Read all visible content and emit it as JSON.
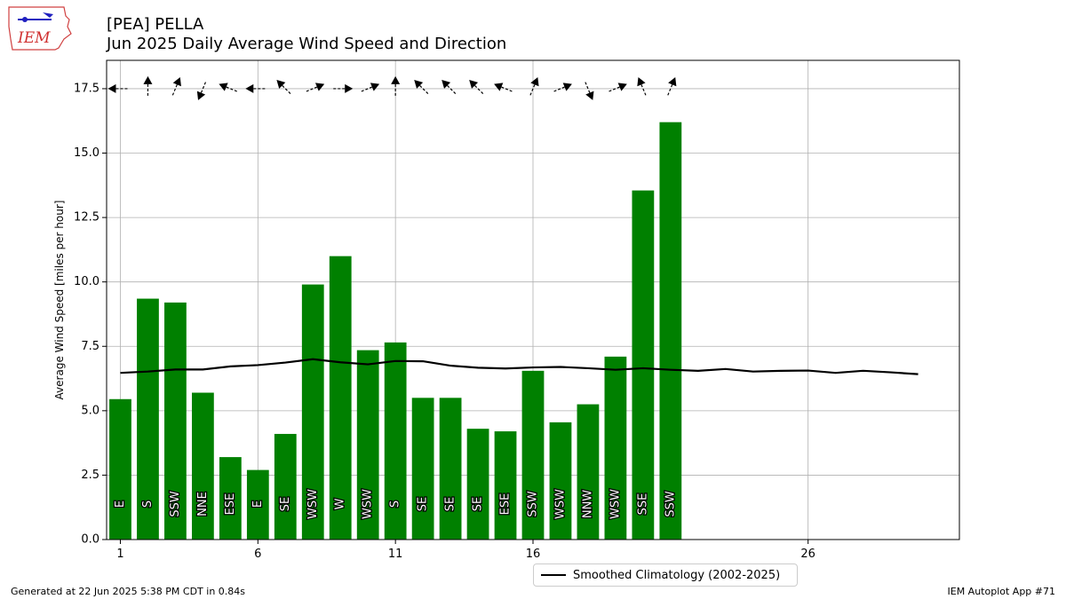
{
  "header": {
    "title_line1": "[PEA] PELLA",
    "title_line2": "Jun 2025 Daily Average Wind Speed and Direction",
    "logo_text": "IEM"
  },
  "footer": {
    "generated": "Generated at 22 Jun 2025 5:38 PM CDT in 0.84s",
    "app": "IEM Autoplot App #71"
  },
  "legend": {
    "label": "Smoothed Climatology (2002-2025)"
  },
  "colors": {
    "bar": "#008000",
    "climo": "#000000",
    "grid": "#b0b0b0"
  },
  "chart_data": {
    "type": "bar",
    "title": "[PEA] PELLA",
    "subtitle": "Jun 2025 Daily Average Wind Speed and Direction",
    "ylabel": "Average Wind Speed [miles per hour]",
    "xlabel": "",
    "ylim": [
      0,
      18.6
    ],
    "xlim": [
      0.5,
      31.5
    ],
    "grid": true,
    "legend_placement": "bottom-center",
    "xticks": [
      1,
      6,
      11,
      16,
      26
    ],
    "yticks": [
      0.0,
      2.5,
      5.0,
      7.5,
      10.0,
      12.5,
      15.0,
      17.5
    ],
    "days": [
      1,
      2,
      3,
      4,
      5,
      6,
      7,
      8,
      9,
      10,
      11,
      12,
      13,
      14,
      15,
      16,
      17,
      18,
      19,
      20,
      21
    ],
    "values": [
      5.45,
      9.35,
      9.2,
      5.7,
      3.2,
      2.7,
      4.1,
      9.9,
      11.0,
      7.35,
      7.65,
      5.5,
      5.5,
      4.3,
      4.2,
      6.55,
      4.55,
      5.25,
      7.1,
      13.55,
      16.2
    ],
    "directions": [
      "E",
      "S",
      "SSW",
      "NNE",
      "ESE",
      "E",
      "SE",
      "WSW",
      "W",
      "WSW",
      "S",
      "SE",
      "SE",
      "SE",
      "ESE",
      "SSW",
      "WSW",
      "NNW",
      "WSW",
      "SSE",
      "SSW"
    ],
    "arrow_directions_deg": [
      90,
      180,
      202.5,
      22.5,
      112.5,
      90,
      135,
      247.5,
      270,
      247.5,
      180,
      135,
      135,
      135,
      112.5,
      202.5,
      247.5,
      337.5,
      247.5,
      157.5,
      202.5
    ],
    "arrow_y": 17.5,
    "series": [
      {
        "name": "Smoothed Climatology (2002-2025)",
        "x": [
          1,
          2,
          3,
          4,
          5,
          6,
          7,
          8,
          9,
          10,
          11,
          12,
          13,
          14,
          15,
          16,
          17,
          18,
          19,
          20,
          21,
          22,
          23,
          24,
          25,
          26,
          27,
          28,
          29,
          30
        ],
        "values": [
          6.47,
          6.52,
          6.6,
          6.6,
          6.72,
          6.77,
          6.87,
          7.0,
          6.88,
          6.8,
          6.93,
          6.92,
          6.75,
          6.67,
          6.64,
          6.68,
          6.7,
          6.65,
          6.59,
          6.65,
          6.59,
          6.55,
          6.62,
          6.52,
          6.55,
          6.56,
          6.47,
          6.55,
          6.49,
          6.42
        ]
      }
    ]
  }
}
